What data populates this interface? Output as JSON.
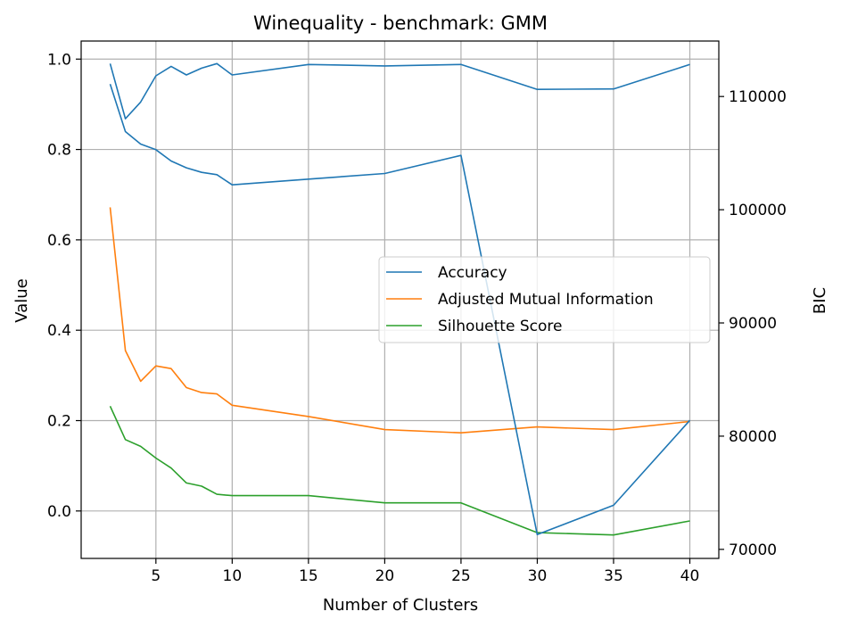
{
  "chart_data": {
    "type": "line",
    "title": "Winequality - benchmark: GMM",
    "xlabel": "Number of Clusters",
    "ylabel": "Value",
    "y2label": "BIC",
    "xlim": [
      0.1,
      41.9
    ],
    "ylim": [
      -0.105,
      1.04
    ],
    "y2lim": [
      69200,
      114900
    ],
    "xticks": [
      5,
      10,
      15,
      20,
      25,
      30,
      35,
      40
    ],
    "yticks": [
      0.0,
      0.2,
      0.4,
      0.6,
      0.8,
      1.0
    ],
    "y2ticks": [
      70000,
      80000,
      90000,
      100000,
      110000
    ],
    "grid": true,
    "legend_position": "center-right",
    "series": [
      {
        "name": "Accuracy",
        "color": "#1f77b4",
        "axis": "left",
        "x": [
          2,
          3,
          4,
          5,
          6,
          7,
          8,
          9,
          10,
          15,
          20,
          25,
          30,
          35,
          40
        ],
        "values": [
          0.99,
          0.868,
          0.905,
          0.963,
          0.984,
          0.965,
          0.98,
          0.99,
          0.965,
          0.988,
          0.985,
          0.988,
          0.933,
          0.934,
          0.988
        ]
      },
      {
        "name": "Adjusted Mutual Information",
        "color": "#ff7f0e",
        "axis": "left",
        "x": [
          2,
          3,
          4,
          5,
          6,
          7,
          8,
          9,
          10,
          15,
          20,
          25,
          30,
          35,
          40
        ],
        "values": [
          0.672,
          0.355,
          0.287,
          0.321,
          0.315,
          0.273,
          0.262,
          0.259,
          0.234,
          0.209,
          0.18,
          0.173,
          0.186,
          0.18,
          0.198
        ]
      },
      {
        "name": "Silhouette Score",
        "color": "#2ca02c",
        "axis": "left",
        "x": [
          2,
          3,
          4,
          5,
          6,
          7,
          8,
          9,
          10,
          15,
          20,
          25,
          30,
          35,
          40
        ],
        "values": [
          0.232,
          0.158,
          0.143,
          0.117,
          0.095,
          0.062,
          0.055,
          0.037,
          0.034,
          0.034,
          0.018,
          0.018,
          -0.048,
          -0.053,
          -0.022
        ]
      },
      {
        "name": "",
        "color": "#1f77b4",
        "axis": "right",
        "x": [
          2,
          3,
          4,
          5,
          6,
          7,
          8,
          9,
          10,
          15,
          20,
          25,
          30,
          35,
          40
        ],
        "values": [
          111100,
          106900,
          105800,
          105300,
          104300,
          103700,
          103300,
          103100,
          102200,
          102700,
          103200,
          104800,
          71300,
          73900,
          81400
        ]
      }
    ]
  }
}
